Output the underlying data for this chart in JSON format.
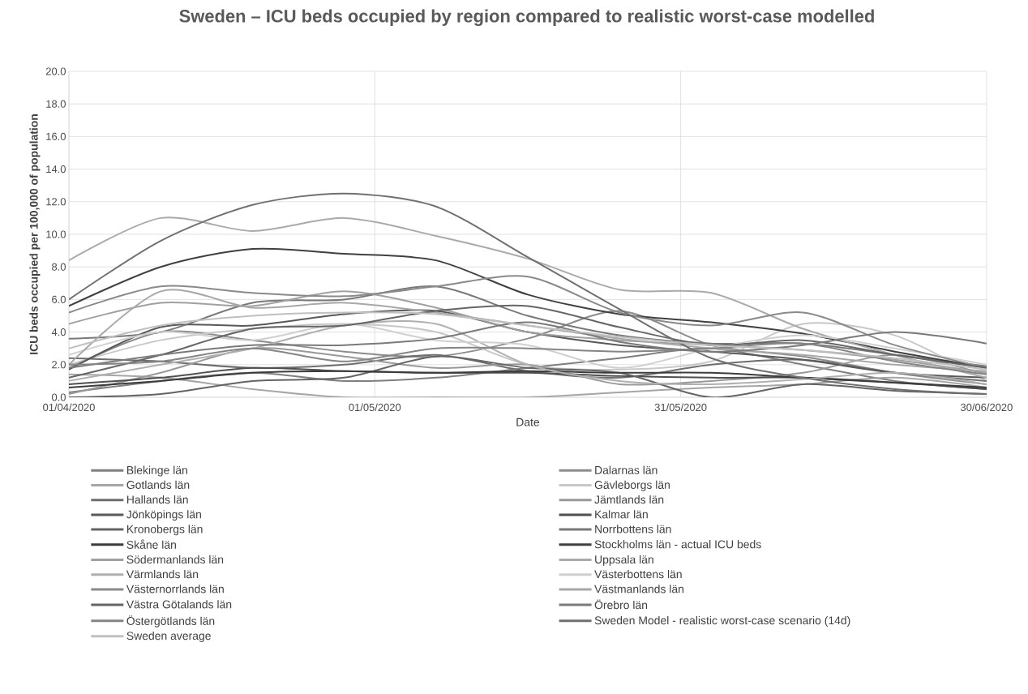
{
  "chart_data": {
    "type": "line",
    "title": "Sweden – ICU beds occupied by region compared to realistic worst-case modelled",
    "xlabel": "Date",
    "ylabel": "ICU beds occupied per 100,000 of population",
    "x": [
      "2020-04-01",
      "2020-04-10",
      "2020-04-19",
      "2020-04-28",
      "2020-05-07",
      "2020-05-16",
      "2020-05-25",
      "2020-06-03",
      "2020-06-12",
      "2020-06-21",
      "2020-06-30"
    ],
    "xlim": [
      "2020-04-01",
      "2020-06-30"
    ],
    "xticks": [
      {
        "value": "2020-04-01",
        "label": "01/04/2020"
      },
      {
        "value": "2020-05-01",
        "label": "01/05/2020"
      },
      {
        "value": "2020-05-31",
        "label": "31/05/2020"
      },
      {
        "value": "2020-06-30",
        "label": "30/06/2020"
      }
    ],
    "ylim": [
      0,
      20
    ],
    "yticks": [
      {
        "value": 0,
        "label": "0.0"
      },
      {
        "value": 2,
        "label": "2.0"
      },
      {
        "value": 4,
        "label": "4.0"
      },
      {
        "value": 6,
        "label": "6.0"
      },
      {
        "value": 8,
        "label": "8.0"
      },
      {
        "value": 10,
        "label": "10.0"
      },
      {
        "value": 12,
        "label": "12.0"
      },
      {
        "value": 14,
        "label": "14.0"
      },
      {
        "value": 16,
        "label": "16.0"
      },
      {
        "value": 18,
        "label": "18.0"
      },
      {
        "value": 20,
        "label": "20.0"
      }
    ],
    "grid": true,
    "legend": "bottom",
    "marker": "none",
    "line_style": "solid",
    "series": [
      {
        "name": "Blekinge län",
        "color": "#7f7f7f",
        "values": [
          0.3,
          1.0,
          1.5,
          1.0,
          1.2,
          1.8,
          2.4,
          3.0,
          2.0,
          1.0,
          0.5
        ]
      },
      {
        "name": "Dalarnas län",
        "color": "#8c8c8c",
        "values": [
          1.8,
          4.0,
          3.5,
          2.8,
          2.5,
          3.6,
          5.3,
          3.2,
          2.5,
          1.5,
          0.8
        ]
      },
      {
        "name": "Gotlands län",
        "color": "#a6a6a6",
        "values": [
          1.4,
          1.2,
          0.5,
          0.0,
          0.0,
          0.0,
          0.3,
          0.6,
          0.8,
          1.2,
          0.6
        ]
      },
      {
        "name": "Gävleborgs län",
        "color": "#c8c8c8",
        "values": [
          2.0,
          3.5,
          4.2,
          4.5,
          4.0,
          2.0,
          1.7,
          2.2,
          4.5,
          3.8,
          1.0
        ]
      },
      {
        "name": "Hallands län",
        "color": "#6e6e6e",
        "values": [
          2.4,
          2.2,
          1.8,
          2.0,
          2.6,
          1.6,
          1.2,
          2.0,
          2.3,
          1.5,
          1.0
        ]
      },
      {
        "name": "Jämtlands län",
        "color": "#999999",
        "values": [
          0.2,
          1.5,
          3.0,
          2.5,
          1.8,
          2.0,
          0.8,
          1.0,
          1.5,
          2.6,
          1.4
        ]
      },
      {
        "name": "Jönköpings län",
        "color": "#595959",
        "values": [
          1.7,
          4.3,
          4.4,
          5.1,
          5.3,
          4.0,
          3.2,
          2.8,
          2.3,
          1.5,
          1.2
        ]
      },
      {
        "name": "Kalmar län",
        "color": "#505050",
        "values": [
          0.8,
          1.2,
          1.8,
          1.6,
          1.5,
          1.5,
          1.3,
          1.2,
          1.2,
          0.9,
          0.5
        ]
      },
      {
        "name": "Kronobergs län",
        "color": "#646464",
        "values": [
          0.0,
          0.2,
          1.0,
          1.2,
          2.5,
          1.8,
          1.5,
          0.0,
          0.8,
          0.4,
          0.2
        ]
      },
      {
        "name": "Norrbottens län",
        "color": "#787878",
        "values": [
          3.6,
          4.0,
          5.8,
          6.0,
          6.8,
          5.0,
          3.8,
          3.3,
          3.3,
          2.6,
          1.9
        ]
      },
      {
        "name": "Skåne län",
        "color": "#3c3c3c",
        "values": [
          0.6,
          1.0,
          1.5,
          1.6,
          1.5,
          1.6,
          1.5,
          1.5,
          1.2,
          0.9,
          0.6
        ]
      },
      {
        "name": "Stockholms län - actual ICU beds",
        "color": "#404040",
        "values": [
          5.6,
          8.0,
          9.1,
          8.8,
          8.4,
          6.3,
          5.1,
          4.6,
          3.9,
          2.8,
          1.8
        ]
      },
      {
        "name": "Södermanlands län",
        "color": "#a0a0a0",
        "values": [
          4.5,
          5.8,
          5.6,
          6.5,
          5.5,
          4.0,
          3.5,
          3.2,
          2.9,
          2.3,
          1.5
        ]
      },
      {
        "name": "Uppsala län",
        "color": "#aaaaaa",
        "values": [
          8.4,
          11.0,
          10.2,
          11.0,
          9.9,
          8.5,
          6.6,
          6.4,
          4.2,
          2.6,
          1.2
        ]
      },
      {
        "name": "Värmlands län",
        "color": "#b0b0b0",
        "values": [
          1.0,
          2.0,
          3.0,
          4.4,
          4.5,
          2.0,
          1.0,
          0.8,
          1.1,
          1.5,
          0.8
        ]
      },
      {
        "name": "Västerbottens län",
        "color": "#d0d0d0",
        "values": [
          2.6,
          4.0,
          3.5,
          4.5,
          3.5,
          3.2,
          1.8,
          3.0,
          3.8,
          3.0,
          2.0
        ]
      },
      {
        "name": "Västernorrlands län",
        "color": "#8a8a8a",
        "values": [
          5.2,
          6.8,
          6.4,
          6.2,
          6.8,
          7.4,
          5.2,
          4.4,
          5.2,
          3.2,
          1.8
        ]
      },
      {
        "name": "Västmanlands län",
        "color": "#a8a8a8",
        "values": [
          2.0,
          6.5,
          5.5,
          5.8,
          5.2,
          4.4,
          3.6,
          3.0,
          2.6,
          2.0,
          1.6
        ]
      },
      {
        "name": "Västra Götalands län",
        "color": "#666666",
        "values": [
          1.2,
          2.6,
          4.2,
          4.4,
          5.3,
          5.6,
          4.3,
          3.2,
          3.5,
          2.6,
          1.8
        ]
      },
      {
        "name": "Örebro län",
        "color": "#7a7a7a",
        "values": [
          1.8,
          2.6,
          3.2,
          3.2,
          3.6,
          4.6,
          3.4,
          2.8,
          3.2,
          4.0,
          3.3
        ]
      },
      {
        "name": "Östergötlands län",
        "color": "#858585",
        "values": [
          2.0,
          2.2,
          3.0,
          2.2,
          3.0,
          3.0,
          2.8,
          3.0,
          3.3,
          2.2,
          1.4
        ]
      },
      {
        "name": "Sweden Model - realistic worst-case scenario (14d)",
        "color": "#707070",
        "values": [
          6.0,
          9.6,
          11.8,
          12.5,
          11.7,
          8.6,
          5.4,
          2.4,
          1.2,
          0.5,
          0.2
        ]
      },
      {
        "name": "Sweden average",
        "color": "#c0c0c0",
        "values": [
          3.0,
          4.4,
          5.0,
          5.2,
          5.1,
          4.4,
          3.7,
          3.2,
          2.9,
          2.4,
          1.7
        ]
      }
    ]
  }
}
